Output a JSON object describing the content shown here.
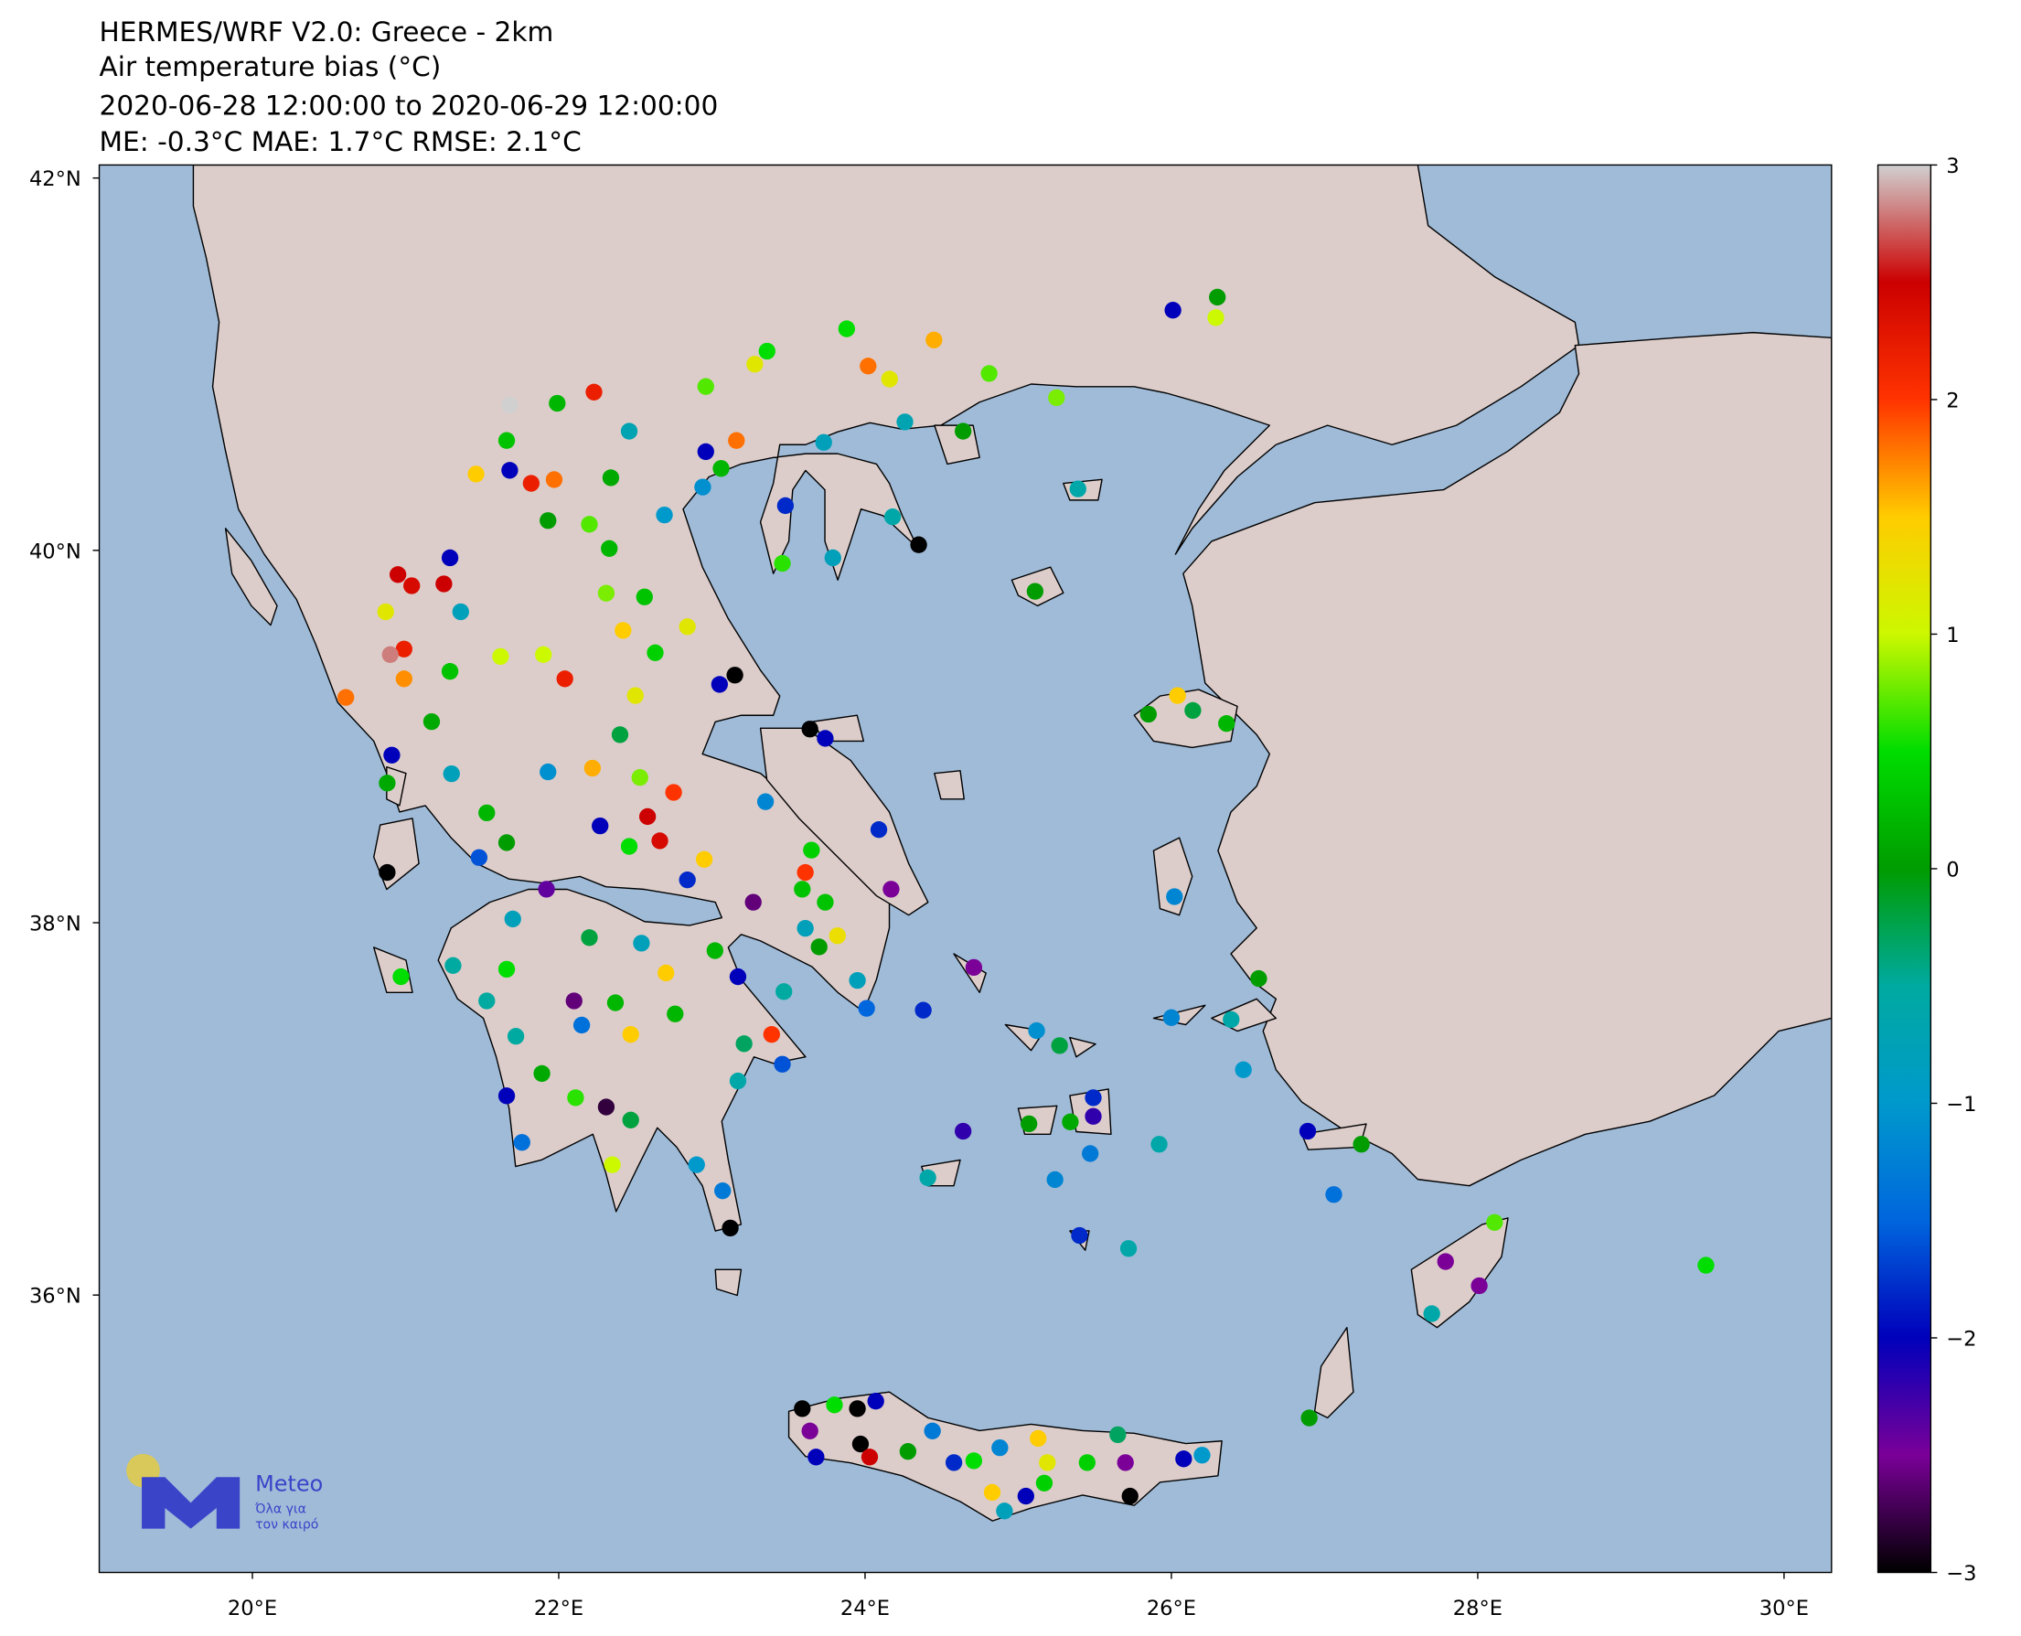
{
  "chart_data": {
    "type": "scatter",
    "title": [
      "HERMES/WRF V2.0: Greece - 2km",
      "Air temperature bias (°C)",
      "2020-06-28 12:00:00 to 2020-06-29 12:00:00",
      "ME: -0.3°C MAE: 1.7°C RMSE: 2.1°C"
    ],
    "xlim": [
      19.0,
      30.31
    ],
    "ylim": [
      34.51,
      42.07
    ],
    "xticks": [
      {
        "value": 20,
        "label": "20°E"
      },
      {
        "value": 22,
        "label": "22°E"
      },
      {
        "value": 24,
        "label": "24°E"
      },
      {
        "value": 26,
        "label": "26°E"
      },
      {
        "value": 28,
        "label": "28°E"
      },
      {
        "value": 30,
        "label": "30°E"
      }
    ],
    "yticks": [
      {
        "value": 36,
        "label": "36°N"
      },
      {
        "value": 38,
        "label": "38°N"
      },
      {
        "value": 40,
        "label": "40°N"
      },
      {
        "value": 42,
        "label": "42°N"
      }
    ],
    "colorbar": {
      "lim": [
        -3,
        3
      ],
      "ticks": [
        {
          "value": -3,
          "label": "−3"
        },
        {
          "value": -2,
          "label": "−2"
        },
        {
          "value": -1,
          "label": "−1"
        },
        0,
        1,
        2,
        3
      ]
    },
    "colormap": [
      "#000000",
      "#7a0098",
      "#0000bb",
      "#0066dd",
      "#0099cc",
      "#00aaa0",
      "#009c00",
      "#00dd00",
      "#ccf800",
      "#ffcc00",
      "#ff3300",
      "#cc0000",
      "#d0d0d0"
    ],
    "x": [
      26.01,
      26.3,
      26.29,
      24.45,
      23.88,
      23.36,
      23.28,
      22.96,
      24.02,
      24.16,
      24.81,
      25.25,
      24.26,
      24.64,
      23.73,
      23.16,
      22.96,
      23.06,
      22.94,
      23.48,
      24.18,
      24.35,
      23.46,
      23.79,
      25.39,
      25.11,
      21.68,
      22.23,
      21.99,
      21.66,
      22.46,
      22.34,
      21.68,
      21.46,
      21.82,
      21.97,
      21.93,
      22.2,
      22.69,
      22.33,
      22.31,
      22.56,
      22.42,
      22.84,
      22.63,
      22.5,
      23.05,
      23.15,
      23.64,
      23.74,
      21.29,
      20.95,
      21.04,
      21.25,
      20.87,
      21.36,
      20.99,
      20.9,
      20.99,
      21.29,
      21.62,
      21.9,
      22.04,
      20.61,
      21.17,
      20.91,
      20.88,
      21.3,
      21.93,
      22.22,
      22.4,
      22.53,
      22.75,
      23.35,
      22.27,
      22.58,
      22.66,
      22.46,
      22.95,
      22.84,
      23.27,
      23.65,
      24.09,
      24.17,
      23.61,
      23.59,
      23.74,
      23.61,
      23.7,
      23.82,
      23.95,
      24.01,
      21.53,
      21.66,
      21.48,
      20.88,
      21.92,
      21.7,
      22.2,
      22.54,
      23.02,
      23.17,
      22.7,
      20.97,
      21.31,
      21.66,
      21.53,
      22.1,
      22.37,
      22.15,
      22.47,
      22.76,
      23.47,
      23.39,
      23.21,
      23.46,
      23.17,
      21.72,
      21.89,
      21.66,
      22.11,
      22.31,
      22.47,
      21.76,
      22.35,
      22.9,
      23.07,
      23.12,
      24.38,
      24.71,
      25.12,
      25.27,
      24.64,
      24.41,
      25.07,
      25.24,
      25.34,
      25.49,
      25.49,
      25.47,
      25.92,
      25.4,
      25.72,
      26.0,
      26.57,
      26.39,
      26.47,
      26.02,
      26.14,
      26.04,
      25.85,
      26.36,
      26.89,
      27.24,
      27.06,
      27.79,
      28.01,
      28.11,
      27.7,
      29.49,
      26.9,
      23.59,
      23.64,
      23.8,
      23.95,
      24.07,
      23.68,
      23.97,
      24.03,
      24.28,
      24.44,
      24.58,
      24.71,
      24.88,
      25.13,
      25.19,
      25.17,
      24.83,
      24.91,
      25.05,
      25.45,
      25.65,
      25.7,
      25.73,
      26.08,
      26.2
    ],
    "y": [
      41.29,
      41.36,
      41.25,
      41.13,
      41.19,
      41.07,
      41.0,
      40.88,
      40.99,
      40.92,
      40.95,
      40.82,
      40.69,
      40.64,
      40.58,
      40.59,
      40.53,
      40.44,
      40.34,
      40.24,
      40.18,
      40.03,
      39.93,
      39.96,
      40.33,
      39.78,
      40.78,
      40.85,
      40.79,
      40.59,
      40.64,
      40.39,
      40.43,
      40.41,
      40.36,
      40.38,
      40.16,
      40.14,
      40.19,
      40.01,
      39.77,
      39.75,
      39.57,
      39.59,
      39.45,
      39.22,
      39.28,
      39.33,
      39.04,
      38.99,
      39.96,
      39.87,
      39.81,
      39.82,
      39.67,
      39.67,
      39.47,
      39.44,
      39.31,
      39.35,
      39.43,
      39.44,
      39.31,
      39.21,
      39.08,
      38.9,
      38.75,
      38.8,
      38.81,
      38.83,
      39.01,
      38.78,
      38.7,
      38.65,
      38.52,
      38.57,
      38.44,
      38.41,
      38.34,
      38.23,
      38.11,
      38.39,
      38.5,
      38.18,
      38.27,
      38.18,
      38.11,
      37.97,
      37.87,
      37.93,
      37.69,
      37.54,
      38.59,
      38.43,
      38.35,
      38.27,
      38.18,
      38.02,
      37.92,
      37.89,
      37.85,
      37.71,
      37.73,
      37.71,
      37.77,
      37.75,
      37.58,
      37.58,
      37.57,
      37.45,
      37.4,
      37.51,
      37.63,
      37.4,
      37.35,
      37.24,
      37.15,
      37.39,
      37.19,
      37.07,
      37.06,
      37.01,
      36.94,
      36.82,
      36.7,
      36.7,
      36.56,
      36.36,
      37.53,
      37.76,
      37.42,
      37.34,
      36.88,
      36.63,
      36.92,
      36.62,
      36.93,
      37.06,
      36.96,
      36.76,
      36.81,
      36.32,
      36.25,
      37.49,
      37.7,
      37.48,
      37.21,
      38.14,
      39.14,
      39.22,
      39.12,
      39.07,
      36.88,
      36.81,
      36.54,
      36.18,
      36.05,
      36.39,
      35.9,
      36.16,
      35.34,
      35.39,
      35.27,
      35.41,
      35.39,
      35.43,
      35.13,
      35.2,
      35.13,
      35.16,
      35.27,
      35.1,
      35.11,
      35.18,
      35.23,
      35.1,
      34.99,
      34.94,
      34.84,
      34.92,
      35.1,
      35.25,
      35.1,
      34.92,
      35.12,
      35.14
    ],
    "values": [
      -2.0,
      0,
      1.0,
      1.6,
      0.5,
      0.5,
      1.2,
      0.7,
      1.8,
      1.2,
      0.7,
      0.8,
      -0.7,
      0,
      -0.8,
      1.8,
      -2.0,
      0.2,
      -1.1,
      -1.8,
      -0.6,
      -3.0,
      0.6,
      -0.8,
      -0.6,
      0,
      3.0,
      2.2,
      0.2,
      0.3,
      -0.7,
      0.1,
      -2.0,
      1.5,
      2.2,
      1.8,
      0,
      0.7,
      -1.0,
      0.2,
      0.8,
      0.3,
      1.5,
      1.2,
      0.4,
      1.2,
      -2.0,
      -3.0,
      -3.0,
      -2.0,
      -2.0,
      2.5,
      2.4,
      2.5,
      1.2,
      -0.8,
      2.2,
      2.8,
      1.7,
      0.3,
      1.0,
      1.0,
      2.2,
      1.8,
      0.1,
      -2.0,
      0.1,
      -0.8,
      -1.1,
      1.6,
      -0.2,
      0.8,
      2.0,
      -1.2,
      -2.0,
      2.5,
      2.4,
      0.5,
      1.5,
      -1.8,
      -2.6,
      0.4,
      -1.8,
      -2.5,
      2.0,
      0.3,
      0.3,
      -0.8,
      0,
      1.3,
      -0.8,
      -1.5,
      0.2,
      0,
      -1.6,
      -3.0,
      -2.4,
      -0.8,
      -0.2,
      -0.8,
      0.2,
      -2.0,
      1.5,
      0.5,
      -0.5,
      0.5,
      -0.5,
      -2.6,
      0.2,
      -1.4,
      1.5,
      0.2,
      -0.5,
      2.0,
      -0.3,
      -1.6,
      -0.6,
      -0.5,
      0.1,
      -2.0,
      0.6,
      -2.8,
      -0.2,
      -1.4,
      1.0,
      -1.0,
      -1.3,
      -3.0,
      -1.8,
      -2.5,
      -1.1,
      -0.2,
      -2.2,
      -0.6,
      0,
      -1.2,
      0.1,
      -1.8,
      -2.2,
      -1.3,
      -0.6,
      -1.8,
      -0.6,
      -1.2,
      0,
      -0.6,
      -1.0,
      -1.2,
      -0.2,
      1.5,
      0,
      0.2,
      -2.0,
      0,
      -1.4,
      -2.5,
      -2.5,
      0.7,
      -0.6,
      0.5,
      0,
      -3.0,
      -2.5,
      0.5,
      -3.0,
      -2.0,
      -2.0,
      -3.0,
      2.5,
      0,
      -1.3,
      -1.8,
      0.5,
      -1.2,
      1.5,
      1.2,
      0.4,
      1.5,
      -0.8,
      -2.0,
      0.4,
      -0.3,
      -2.5,
      -3.0,
      -2.0,
      -1.0
    ]
  },
  "logo": {
    "name": "Meteo",
    "tagline": [
      "Όλα για",
      "τον καιρό"
    ]
  }
}
